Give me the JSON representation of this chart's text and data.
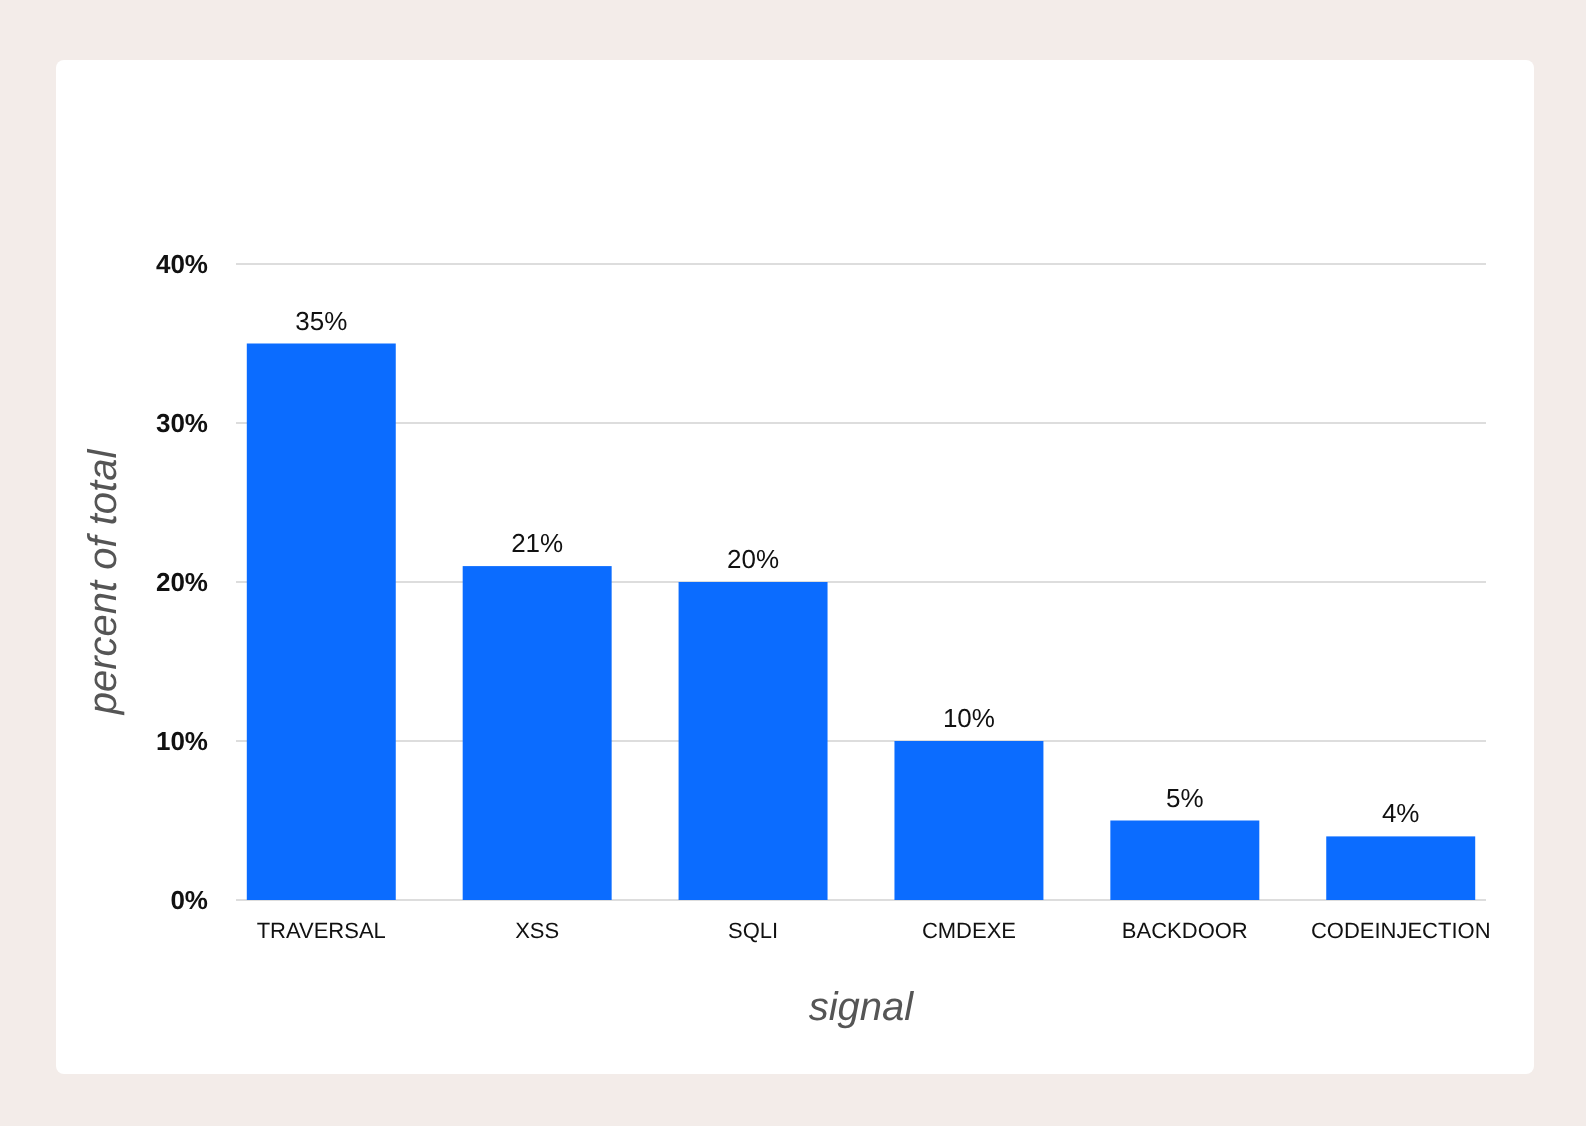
{
  "chart_data": {
    "type": "bar",
    "xlabel": "signal",
    "ylabel": "percent of total",
    "categories": [
      "TRAVERSAL",
      "XSS",
      "SQLI",
      "CMDEXE",
      "BACKDOOR",
      "CODEINJECTION"
    ],
    "values": [
      35,
      21,
      20,
      10,
      5,
      4
    ],
    "color": "#0b6cff",
    "value_labels": [
      "35%",
      "21%",
      "20%",
      "10%",
      "5%",
      "4%"
    ],
    "ylim": [
      0,
      40
    ],
    "yticks": [
      {
        "value": 0,
        "label": "0%"
      },
      {
        "value": 10,
        "label": "10%"
      },
      {
        "value": 20,
        "label": "20%"
      },
      {
        "value": 30,
        "label": "30%"
      },
      {
        "value": 40,
        "label": "40%"
      }
    ],
    "grid": "y"
  }
}
